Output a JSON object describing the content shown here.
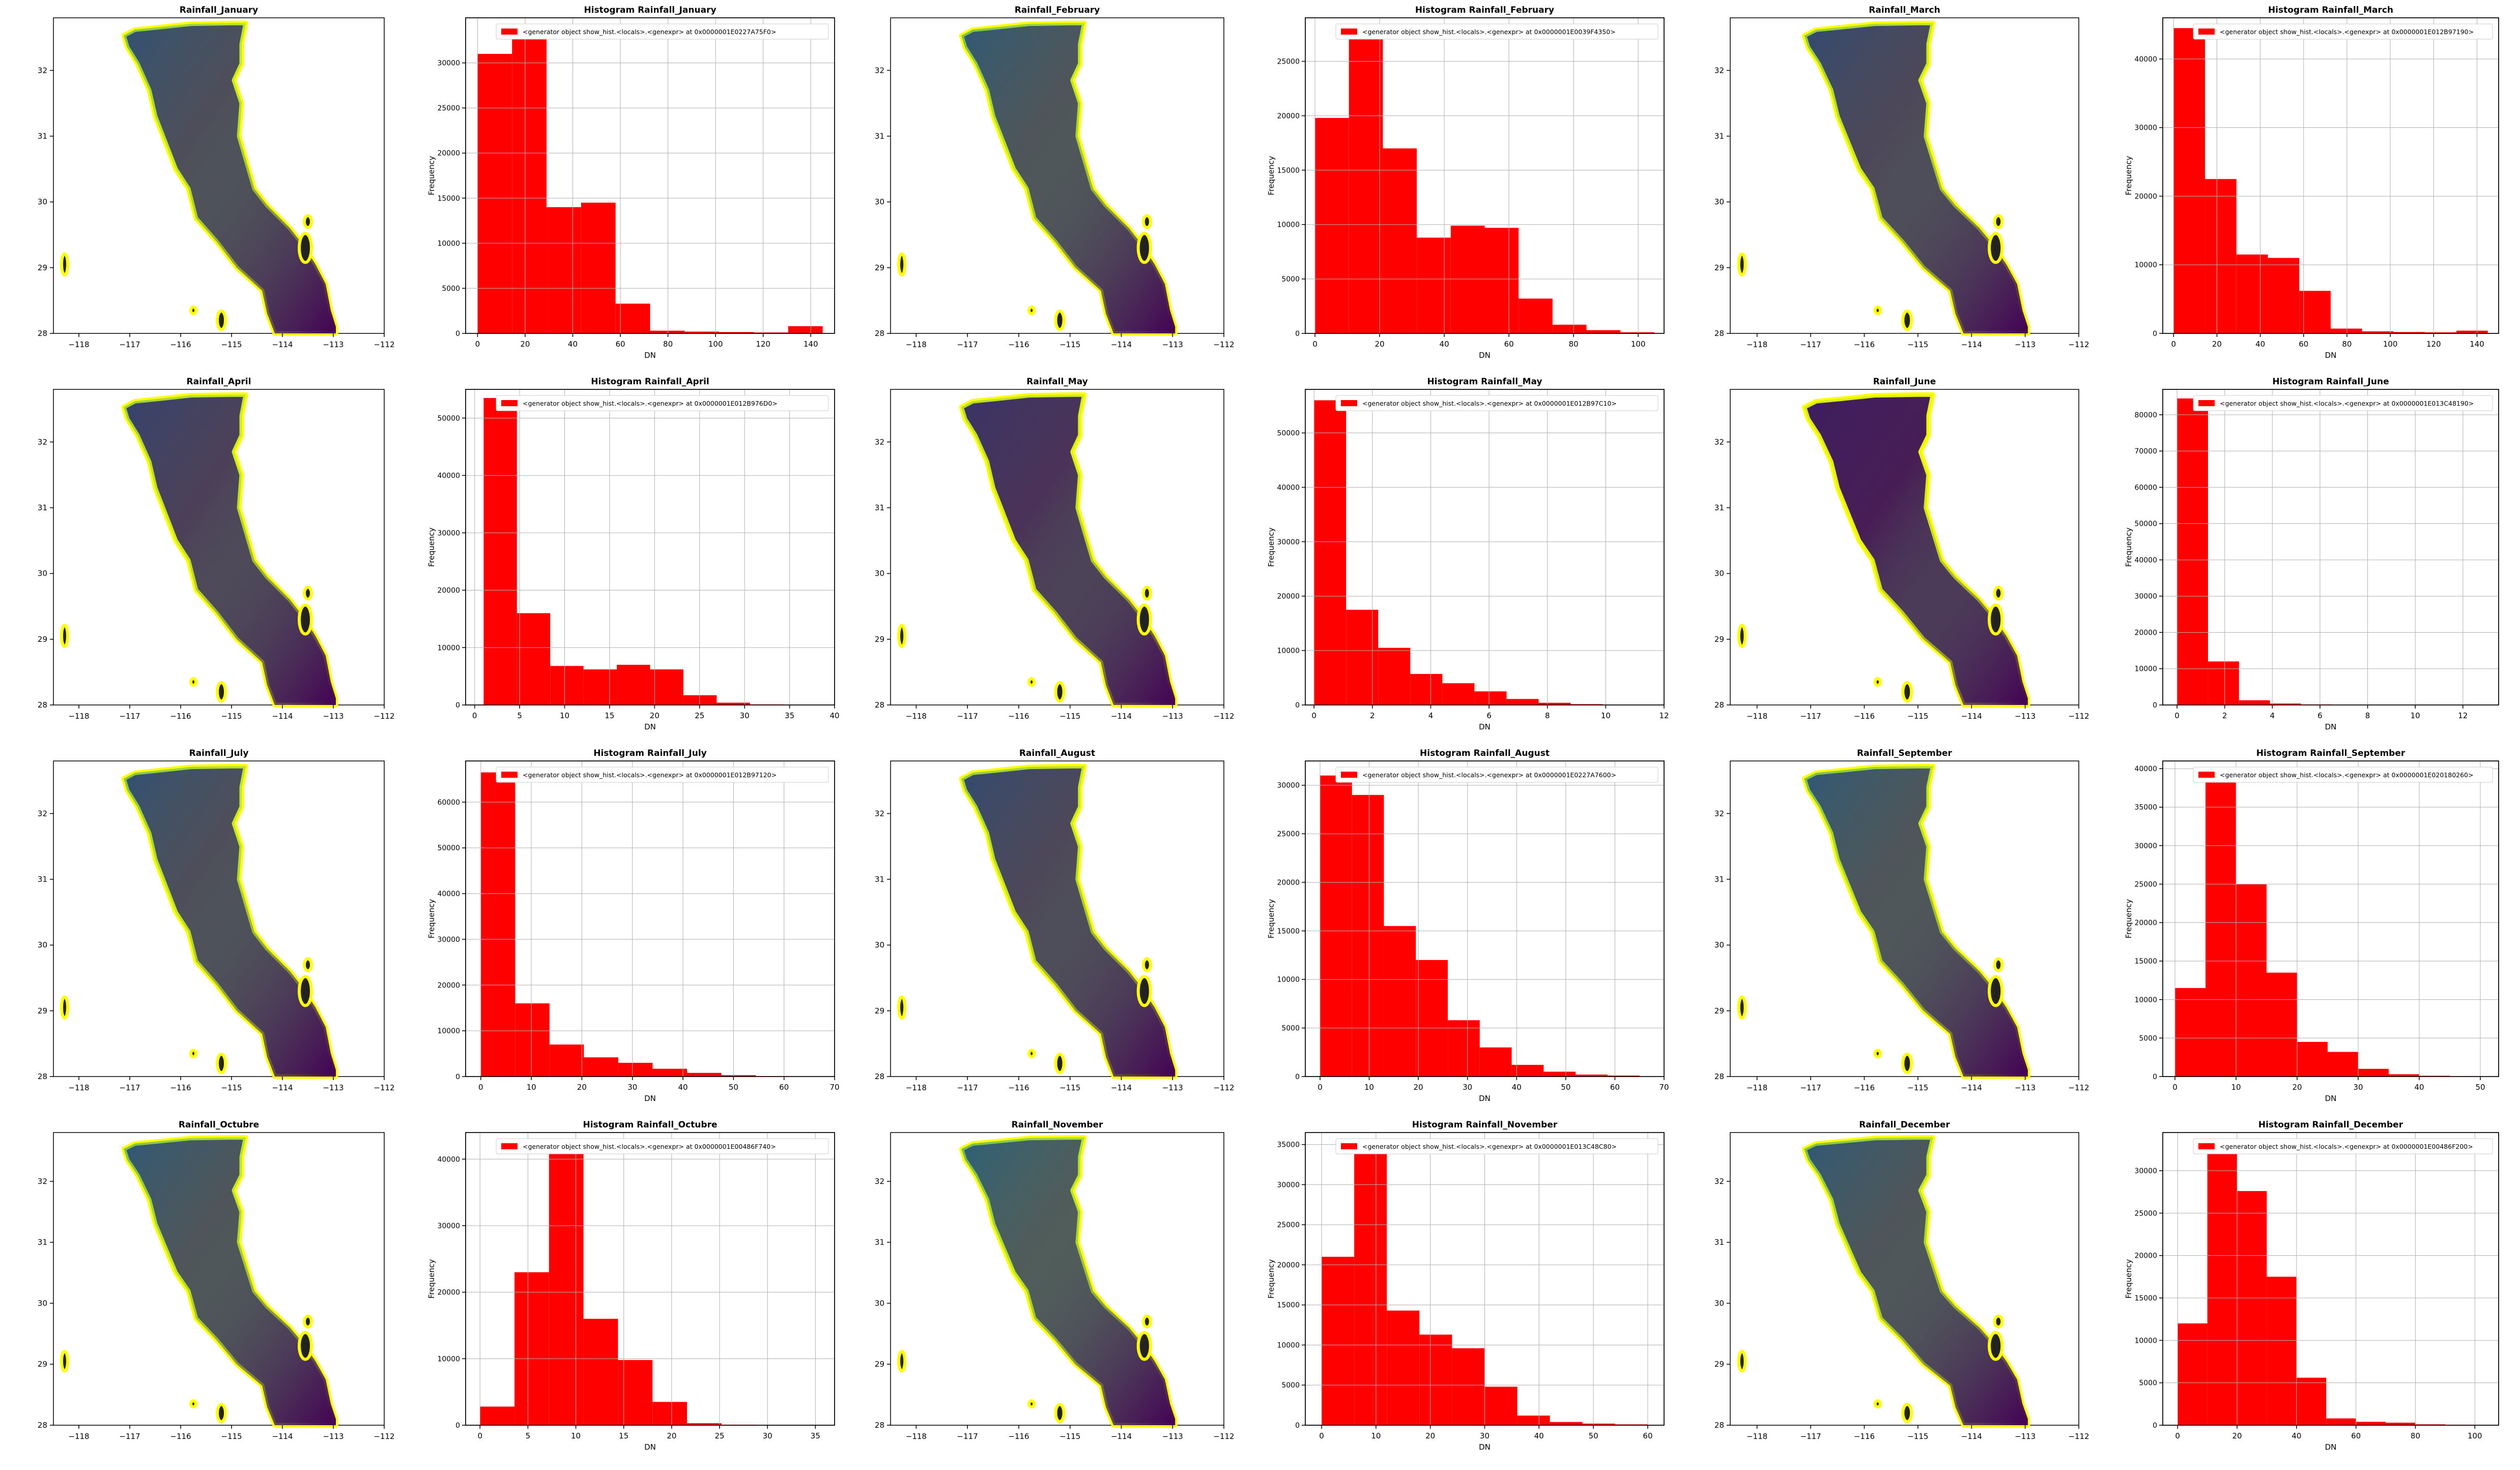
{
  "colors": {
    "bar": "#ff0000",
    "coast": "#ffff00",
    "grid": "#b0b0b0",
    "dark": "#440154",
    "mid": "#21918c",
    "light": "#5ec962"
  },
  "legend_label": "<generator object show_hist.<locals>.<genexpr> at 0x0000001E0227A75F0>",
  "chart_data": [
    {
      "type": "heatmap",
      "title": "Rainfall_January",
      "xticks": [
        "−118",
        "−117",
        "−116",
        "−115",
        "−114",
        "−113",
        "−112"
      ],
      "yticks": [
        "28",
        "29",
        "30",
        "31",
        "32"
      ],
      "xlim": [
        -118.5,
        -112
      ],
      "ylim": [
        28,
        32.8
      ],
      "intensity": 0.55
    },
    {
      "type": "bar",
      "title": "Histogram Rainfall_January",
      "legend": "<generator object show_hist.<locals>.<genexpr> at 0x0000001E0227A75F0>",
      "xlabel": "DN",
      "ylabel": "Frequency",
      "bin_edges": [
        0,
        14.5,
        29,
        43.5,
        58,
        72.5,
        87,
        101.5,
        116,
        130.5,
        145
      ],
      "values": [
        31000,
        33000,
        14000,
        14500,
        3300,
        300,
        200,
        150,
        100,
        800
      ],
      "xticks": [
        0,
        20,
        40,
        60,
        80,
        100,
        120,
        140
      ],
      "xlim": [
        -5,
        150
      ],
      "yticks": [
        0,
        5000,
        10000,
        15000,
        20000,
        25000,
        30000
      ],
      "ylim": [
        0,
        35000
      ]
    },
    {
      "type": "heatmap",
      "title": "Rainfall_February",
      "xticks": [
        "−118",
        "−117",
        "−116",
        "−115",
        "−114",
        "−113",
        "−112"
      ],
      "yticks": [
        "28",
        "29",
        "30",
        "31",
        "32"
      ],
      "xlim": [
        -118.5,
        -112
      ],
      "ylim": [
        28,
        32.8
      ],
      "intensity": 0.6
    },
    {
      "type": "bar",
      "title": "Histogram Rainfall_February",
      "legend": "<generator object show_hist.<locals>.<genexpr> at 0x0000001E0039F4350>",
      "xlabel": "DN",
      "ylabel": "Frequency",
      "bin_edges": [
        0,
        10.5,
        21,
        31.5,
        42,
        52.5,
        63,
        73.5,
        84,
        94.5,
        105
      ],
      "values": [
        19800,
        28000,
        17000,
        8800,
        9900,
        9700,
        3200,
        800,
        300,
        100
      ],
      "xticks": [
        0,
        20,
        40,
        60,
        80,
        100
      ],
      "xlim": [
        -3,
        108
      ],
      "yticks": [
        0,
        5000,
        10000,
        15000,
        20000,
        25000
      ],
      "ylim": [
        0,
        29000
      ]
    },
    {
      "type": "heatmap",
      "title": "Rainfall_March",
      "xticks": [
        "−118",
        "−117",
        "−116",
        "−115",
        "−114",
        "−113",
        "−112"
      ],
      "yticks": [
        "28",
        "29",
        "30",
        "31",
        "32"
      ],
      "xlim": [
        -118.5,
        -112
      ],
      "ylim": [
        28,
        32.8
      ],
      "intensity": 0.5
    },
    {
      "type": "bar",
      "title": "Histogram Rainfall_March",
      "legend": "<generator object show_hist.<locals>.<genexpr> at 0x0000001E012B97190>",
      "xlabel": "DN",
      "ylabel": "Frequency",
      "bin_edges": [
        0,
        14.5,
        29,
        43.5,
        58,
        72.5,
        87,
        101.5,
        116,
        130.5,
        145
      ],
      "values": [
        44500,
        22500,
        11500,
        11000,
        6200,
        700,
        300,
        200,
        150,
        400
      ],
      "xticks": [
        0,
        20,
        40,
        60,
        80,
        100,
        120,
        140
      ],
      "xlim": [
        -5,
        150
      ],
      "yticks": [
        0,
        10000,
        20000,
        30000,
        40000
      ],
      "ylim": [
        0,
        46000
      ]
    },
    {
      "type": "heatmap",
      "title": "Rainfall_April",
      "xticks": [
        "−118",
        "−117",
        "−116",
        "−115",
        "−114",
        "−113",
        "−112"
      ],
      "yticks": [
        "28",
        "29",
        "30",
        "31",
        "32"
      ],
      "xlim": [
        -118.5,
        -112
      ],
      "ylim": [
        28,
        32.8
      ],
      "intensity": 0.45
    },
    {
      "type": "bar",
      "title": "Histogram Rainfall_April",
      "legend": "<generator object show_hist.<locals>.<genexpr> at 0x0000001E012B976D0>",
      "xlabel": "DN",
      "ylabel": "Frequency",
      "bin_edges": [
        1,
        4.7,
        8.4,
        12.1,
        15.8,
        19.5,
        23.2,
        26.9,
        30.6,
        34.3,
        38
      ],
      "values": [
        53500,
        16000,
        6800,
        6200,
        7000,
        6200,
        1700,
        400,
        100,
        50
      ],
      "xticks": [
        0,
        5,
        10,
        15,
        20,
        25,
        30,
        35,
        40
      ],
      "xlim": [
        -1,
        40
      ],
      "yticks": [
        0,
        10000,
        20000,
        30000,
        40000,
        50000
      ],
      "ylim": [
        0,
        55000
      ]
    },
    {
      "type": "heatmap",
      "title": "Rainfall_May",
      "xticks": [
        "−118",
        "−117",
        "−116",
        "−115",
        "−114",
        "−113",
        "−112"
      ],
      "yticks": [
        "28",
        "29",
        "30",
        "31",
        "32"
      ],
      "xlim": [
        -118.5,
        -112
      ],
      "ylim": [
        28,
        32.8
      ],
      "intensity": 0.35
    },
    {
      "type": "bar",
      "title": "Histogram Rainfall_May",
      "legend": "<generator object show_hist.<locals>.<genexpr> at 0x0000001E012B97C10>",
      "xlabel": "DN",
      "ylabel": "Frequency",
      "bin_edges": [
        0,
        1.1,
        2.2,
        3.3,
        4.4,
        5.5,
        6.6,
        7.7,
        8.8,
        9.9,
        11
      ],
      "values": [
        56000,
        17500,
        10500,
        5700,
        4000,
        2500,
        1100,
        400,
        150,
        50
      ],
      "xticks": [
        0,
        2,
        4,
        6,
        8,
        10,
        12
      ],
      "xlim": [
        -0.3,
        12
      ],
      "yticks": [
        0,
        10000,
        20000,
        30000,
        40000,
        50000
      ],
      "ylim": [
        0,
        58000
      ]
    },
    {
      "type": "heatmap",
      "title": "Rainfall_June",
      "xticks": [
        "−118",
        "−117",
        "−116",
        "−115",
        "−114",
        "−113",
        "−112"
      ],
      "yticks": [
        "28",
        "29",
        "30",
        "31",
        "32"
      ],
      "xlim": [
        -118.5,
        -112
      ],
      "ylim": [
        28,
        32.8
      ],
      "intensity": 0.2
    },
    {
      "type": "bar",
      "title": "Histogram Rainfall_June",
      "legend": "<generator object show_hist.<locals>.<genexpr> at 0x0000001E013C48190>",
      "xlabel": "DN",
      "ylabel": "Frequency",
      "bin_edges": [
        0,
        1.3,
        2.6,
        3.9,
        5.2,
        6.5,
        7.8,
        9.1,
        10.4,
        11.7,
        13
      ],
      "values": [
        84500,
        12000,
        1300,
        400,
        150,
        80,
        50,
        30,
        20,
        10
      ],
      "xticks": [
        0,
        2,
        4,
        6,
        8,
        10,
        12
      ],
      "xlim": [
        -0.6,
        13.5
      ],
      "yticks": [
        0,
        10000,
        20000,
        30000,
        40000,
        50000,
        60000,
        70000,
        80000
      ],
      "ylim": [
        0,
        87000
      ]
    },
    {
      "type": "heatmap",
      "title": "Rainfall_July",
      "xticks": [
        "−118",
        "−117",
        "−116",
        "−115",
        "−114",
        "−113",
        "−112"
      ],
      "yticks": [
        "28",
        "29",
        "30",
        "31",
        "32"
      ],
      "xlim": [
        -118.5,
        -112
      ],
      "ylim": [
        28,
        32.8
      ],
      "intensity": 0.55
    },
    {
      "type": "bar",
      "title": "Histogram Rainfall_July",
      "legend": "<generator object show_hist.<locals>.<genexpr> at 0x0000001E012B97120>",
      "xlabel": "DN",
      "ylabel": "Frequency",
      "bin_edges": [
        0,
        6.8,
        13.6,
        20.4,
        27.2,
        34,
        40.8,
        47.6,
        54.4,
        61.2,
        68
      ],
      "values": [
        66500,
        16000,
        7000,
        4200,
        3000,
        1700,
        800,
        300,
        100,
        50
      ],
      "xticks": [
        0,
        10,
        20,
        30,
        40,
        50,
        60,
        70
      ],
      "xlim": [
        -3,
        70
      ],
      "yticks": [
        0,
        10000,
        20000,
        30000,
        40000,
        50000,
        60000
      ],
      "ylim": [
        0,
        69000
      ]
    },
    {
      "type": "heatmap",
      "title": "Rainfall_August",
      "xticks": [
        "−118",
        "−117",
        "−116",
        "−115",
        "−114",
        "−113",
        "−112"
      ],
      "yticks": [
        "28",
        "29",
        "30",
        "31",
        "32"
      ],
      "xlim": [
        -118.5,
        -112
      ],
      "ylim": [
        28,
        32.8
      ],
      "intensity": 0.5
    },
    {
      "type": "bar",
      "title": "Histogram Rainfall_August",
      "legend": "<generator object show_hist.<locals>.<genexpr> at 0x0000001E0227A7600>",
      "xlabel": "DN",
      "ylabel": "Frequency",
      "bin_edges": [
        0,
        6.5,
        13,
        19.5,
        26,
        32.5,
        39,
        45.5,
        52,
        58.5,
        65
      ],
      "values": [
        31000,
        29000,
        15500,
        12000,
        5800,
        3000,
        1200,
        500,
        200,
        100
      ],
      "xticks": [
        0,
        10,
        20,
        30,
        40,
        50,
        60,
        70
      ],
      "xlim": [
        -3,
        70
      ],
      "yticks": [
        0,
        5000,
        10000,
        15000,
        20000,
        25000,
        30000
      ],
      "ylim": [
        0,
        32500
      ]
    },
    {
      "type": "heatmap",
      "title": "Rainfall_September",
      "xticks": [
        "−118",
        "−117",
        "−116",
        "−115",
        "−114",
        "−113",
        "−112"
      ],
      "yticks": [
        "28",
        "29",
        "30",
        "31",
        "32"
      ],
      "xlim": [
        -118.5,
        -112
      ],
      "ylim": [
        28,
        32.8
      ],
      "intensity": 0.6
    },
    {
      "type": "bar",
      "title": "Histogram Rainfall_September",
      "legend": "<generator object show_hist.<locals>.<genexpr> at 0x0000001E020180260>",
      "xlabel": "DN",
      "ylabel": "Frequency",
      "bin_edges": [
        0,
        5,
        10,
        15,
        20,
        25,
        30,
        35,
        40,
        45,
        50
      ],
      "values": [
        11500,
        39000,
        25000,
        13500,
        4500,
        3200,
        1000,
        300,
        100,
        50
      ],
      "xticks": [
        0,
        10,
        20,
        30,
        40,
        50
      ],
      "xlim": [
        -2,
        53
      ],
      "yticks": [
        0,
        5000,
        10000,
        15000,
        20000,
        25000,
        30000,
        35000,
        40000
      ],
      "ylim": [
        0,
        41000
      ]
    },
    {
      "type": "heatmap",
      "title": "Rainfall_Octubre",
      "xticks": [
        "−118",
        "−117",
        "−116",
        "−115",
        "−114",
        "−113",
        "−112"
      ],
      "yticks": [
        "28",
        "29",
        "30",
        "31",
        "32"
      ],
      "xlim": [
        -118.5,
        -112
      ],
      "ylim": [
        28,
        32.8
      ],
      "intensity": 0.6
    },
    {
      "type": "bar",
      "title": "Histogram Rainfall_Octubre",
      "legend": "<generator object show_hist.<locals>.<genexpr> at 0x0000001E00486F740>",
      "xlabel": "DN",
      "ylabel": "Frequency",
      "bin_edges": [
        0,
        3.6,
        7.2,
        10.8,
        14.4,
        18,
        21.6,
        25.2,
        28.8,
        32.4,
        36
      ],
      "values": [
        2800,
        23000,
        43000,
        16000,
        9800,
        3500,
        300,
        80,
        30,
        10
      ],
      "xticks": [
        0,
        5,
        10,
        15,
        20,
        25,
        30,
        35
      ],
      "xlim": [
        -1.5,
        37
      ],
      "yticks": [
        0,
        10000,
        20000,
        30000,
        40000
      ],
      "ylim": [
        0,
        44000
      ]
    },
    {
      "type": "heatmap",
      "title": "Rainfall_November",
      "xticks": [
        "−118",
        "−117",
        "−116",
        "−115",
        "−114",
        "−113",
        "−112"
      ],
      "yticks": [
        "28",
        "29",
        "30",
        "31",
        "32"
      ],
      "xlim": [
        -118.5,
        -112
      ],
      "ylim": [
        28,
        32.8
      ],
      "intensity": 0.65
    },
    {
      "type": "bar",
      "title": "Histogram Rainfall_November",
      "legend": "<generator object show_hist.<locals>.<genexpr> at 0x0000001E013C48C80>",
      "xlabel": "DN",
      "ylabel": "Frequency",
      "bin_edges": [
        0,
        6,
        12,
        18,
        24,
        30,
        36,
        42,
        48,
        54,
        60
      ],
      "values": [
        21000,
        35000,
        14300,
        11300,
        9600,
        4800,
        1200,
        400,
        200,
        100
      ],
      "xticks": [
        0,
        10,
        20,
        30,
        40,
        50,
        60
      ],
      "xlim": [
        -3,
        63
      ],
      "yticks": [
        0,
        5000,
        10000,
        15000,
        20000,
        25000,
        30000,
        35000
      ],
      "ylim": [
        0,
        36500
      ]
    },
    {
      "type": "heatmap",
      "title": "Rainfall_December",
      "xticks": [
        "−118",
        "−117",
        "−116",
        "−115",
        "−114",
        "−113",
        "−112"
      ],
      "yticks": [
        "28",
        "29",
        "30",
        "31",
        "32"
      ],
      "xlim": [
        -118.5,
        -112
      ],
      "ylim": [
        28,
        32.8
      ],
      "intensity": 0.6
    },
    {
      "type": "bar",
      "title": "Histogram Rainfall_December",
      "legend": "<generator object show_hist.<locals>.<genexpr> at 0x0000001E00486F200>",
      "xlabel": "DN",
      "ylabel": "Frequency",
      "bin_edges": [
        0,
        10,
        20,
        30,
        40,
        50,
        60,
        70,
        80,
        90,
        100
      ],
      "values": [
        12000,
        32800,
        27600,
        17500,
        5600,
        800,
        400,
        300,
        100,
        50
      ],
      "xticks": [
        0,
        20,
        40,
        60,
        80,
        100
      ],
      "xlim": [
        -5,
        108
      ],
      "yticks": [
        0,
        5000,
        10000,
        15000,
        20000,
        25000,
        30000
      ],
      "ylim": [
        0,
        34500
      ]
    }
  ]
}
